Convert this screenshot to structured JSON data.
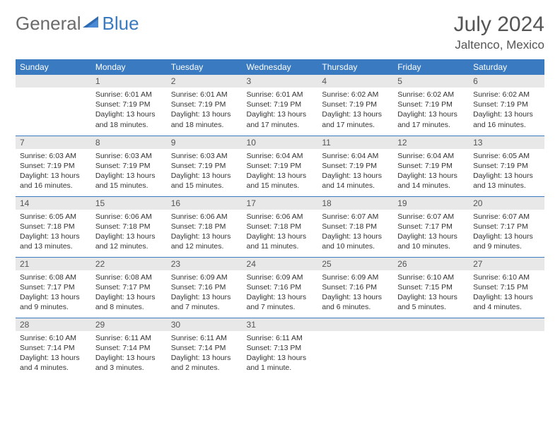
{
  "logo": {
    "text1": "General",
    "text2": "Blue"
  },
  "title": "July 2024",
  "location": "Jaltenco, Mexico",
  "colors": {
    "header_bg": "#3a7ac0",
    "header_text": "#ffffff",
    "daynum_bg": "#e8e8e8",
    "divider": "#3a7ac0",
    "logo_gray": "#6b6b6b",
    "logo_blue": "#3a7ac0"
  },
  "weekdays": [
    "Sunday",
    "Monday",
    "Tuesday",
    "Wednesday",
    "Thursday",
    "Friday",
    "Saturday"
  ],
  "weeks": [
    [
      {
        "n": "",
        "sr": "",
        "ss": "",
        "dl": ""
      },
      {
        "n": "1",
        "sr": "Sunrise: 6:01 AM",
        "ss": "Sunset: 7:19 PM",
        "dl": "Daylight: 13 hours and 18 minutes."
      },
      {
        "n": "2",
        "sr": "Sunrise: 6:01 AM",
        "ss": "Sunset: 7:19 PM",
        "dl": "Daylight: 13 hours and 18 minutes."
      },
      {
        "n": "3",
        "sr": "Sunrise: 6:01 AM",
        "ss": "Sunset: 7:19 PM",
        "dl": "Daylight: 13 hours and 17 minutes."
      },
      {
        "n": "4",
        "sr": "Sunrise: 6:02 AM",
        "ss": "Sunset: 7:19 PM",
        "dl": "Daylight: 13 hours and 17 minutes."
      },
      {
        "n": "5",
        "sr": "Sunrise: 6:02 AM",
        "ss": "Sunset: 7:19 PM",
        "dl": "Daylight: 13 hours and 17 minutes."
      },
      {
        "n": "6",
        "sr": "Sunrise: 6:02 AM",
        "ss": "Sunset: 7:19 PM",
        "dl": "Daylight: 13 hours and 16 minutes."
      }
    ],
    [
      {
        "n": "7",
        "sr": "Sunrise: 6:03 AM",
        "ss": "Sunset: 7:19 PM",
        "dl": "Daylight: 13 hours and 16 minutes."
      },
      {
        "n": "8",
        "sr": "Sunrise: 6:03 AM",
        "ss": "Sunset: 7:19 PM",
        "dl": "Daylight: 13 hours and 15 minutes."
      },
      {
        "n": "9",
        "sr": "Sunrise: 6:03 AM",
        "ss": "Sunset: 7:19 PM",
        "dl": "Daylight: 13 hours and 15 minutes."
      },
      {
        "n": "10",
        "sr": "Sunrise: 6:04 AM",
        "ss": "Sunset: 7:19 PM",
        "dl": "Daylight: 13 hours and 15 minutes."
      },
      {
        "n": "11",
        "sr": "Sunrise: 6:04 AM",
        "ss": "Sunset: 7:19 PM",
        "dl": "Daylight: 13 hours and 14 minutes."
      },
      {
        "n": "12",
        "sr": "Sunrise: 6:04 AM",
        "ss": "Sunset: 7:19 PM",
        "dl": "Daylight: 13 hours and 14 minutes."
      },
      {
        "n": "13",
        "sr": "Sunrise: 6:05 AM",
        "ss": "Sunset: 7:19 PM",
        "dl": "Daylight: 13 hours and 13 minutes."
      }
    ],
    [
      {
        "n": "14",
        "sr": "Sunrise: 6:05 AM",
        "ss": "Sunset: 7:18 PM",
        "dl": "Daylight: 13 hours and 13 minutes."
      },
      {
        "n": "15",
        "sr": "Sunrise: 6:06 AM",
        "ss": "Sunset: 7:18 PM",
        "dl": "Daylight: 13 hours and 12 minutes."
      },
      {
        "n": "16",
        "sr": "Sunrise: 6:06 AM",
        "ss": "Sunset: 7:18 PM",
        "dl": "Daylight: 13 hours and 12 minutes."
      },
      {
        "n": "17",
        "sr": "Sunrise: 6:06 AM",
        "ss": "Sunset: 7:18 PM",
        "dl": "Daylight: 13 hours and 11 minutes."
      },
      {
        "n": "18",
        "sr": "Sunrise: 6:07 AM",
        "ss": "Sunset: 7:18 PM",
        "dl": "Daylight: 13 hours and 10 minutes."
      },
      {
        "n": "19",
        "sr": "Sunrise: 6:07 AM",
        "ss": "Sunset: 7:17 PM",
        "dl": "Daylight: 13 hours and 10 minutes."
      },
      {
        "n": "20",
        "sr": "Sunrise: 6:07 AM",
        "ss": "Sunset: 7:17 PM",
        "dl": "Daylight: 13 hours and 9 minutes."
      }
    ],
    [
      {
        "n": "21",
        "sr": "Sunrise: 6:08 AM",
        "ss": "Sunset: 7:17 PM",
        "dl": "Daylight: 13 hours and 9 minutes."
      },
      {
        "n": "22",
        "sr": "Sunrise: 6:08 AM",
        "ss": "Sunset: 7:17 PM",
        "dl": "Daylight: 13 hours and 8 minutes."
      },
      {
        "n": "23",
        "sr": "Sunrise: 6:09 AM",
        "ss": "Sunset: 7:16 PM",
        "dl": "Daylight: 13 hours and 7 minutes."
      },
      {
        "n": "24",
        "sr": "Sunrise: 6:09 AM",
        "ss": "Sunset: 7:16 PM",
        "dl": "Daylight: 13 hours and 7 minutes."
      },
      {
        "n": "25",
        "sr": "Sunrise: 6:09 AM",
        "ss": "Sunset: 7:16 PM",
        "dl": "Daylight: 13 hours and 6 minutes."
      },
      {
        "n": "26",
        "sr": "Sunrise: 6:10 AM",
        "ss": "Sunset: 7:15 PM",
        "dl": "Daylight: 13 hours and 5 minutes."
      },
      {
        "n": "27",
        "sr": "Sunrise: 6:10 AM",
        "ss": "Sunset: 7:15 PM",
        "dl": "Daylight: 13 hours and 4 minutes."
      }
    ],
    [
      {
        "n": "28",
        "sr": "Sunrise: 6:10 AM",
        "ss": "Sunset: 7:14 PM",
        "dl": "Daylight: 13 hours and 4 minutes."
      },
      {
        "n": "29",
        "sr": "Sunrise: 6:11 AM",
        "ss": "Sunset: 7:14 PM",
        "dl": "Daylight: 13 hours and 3 minutes."
      },
      {
        "n": "30",
        "sr": "Sunrise: 6:11 AM",
        "ss": "Sunset: 7:14 PM",
        "dl": "Daylight: 13 hours and 2 minutes."
      },
      {
        "n": "31",
        "sr": "Sunrise: 6:11 AM",
        "ss": "Sunset: 7:13 PM",
        "dl": "Daylight: 13 hours and 1 minute."
      },
      {
        "n": "",
        "sr": "",
        "ss": "",
        "dl": ""
      },
      {
        "n": "",
        "sr": "",
        "ss": "",
        "dl": ""
      },
      {
        "n": "",
        "sr": "",
        "ss": "",
        "dl": ""
      }
    ]
  ]
}
